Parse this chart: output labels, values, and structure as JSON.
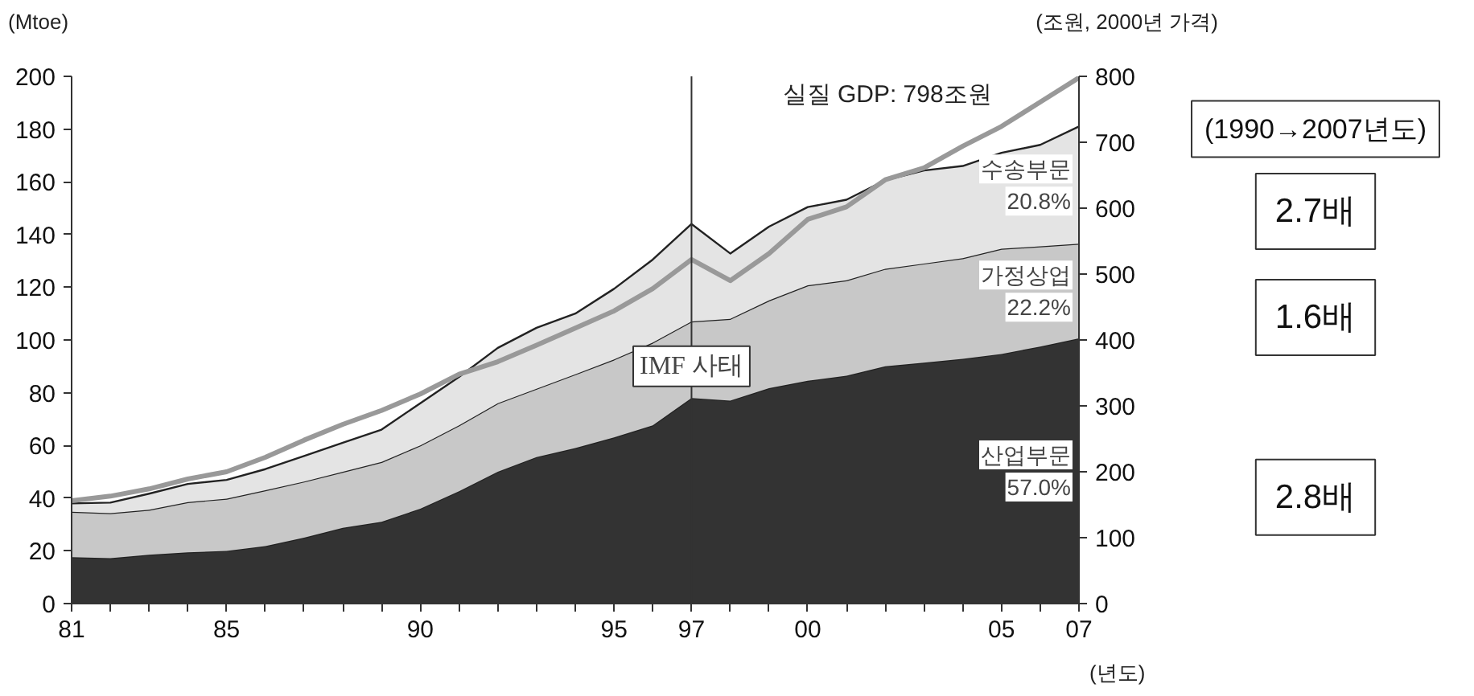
{
  "chart_data": {
    "type": "area",
    "stacked": true,
    "ylabel": "(Mtoe)",
    "y2label": "(조원, 2000년 가격)",
    "xlabel": "(년도)",
    "x": [
      1981,
      1982,
      1983,
      1984,
      1985,
      1986,
      1987,
      1988,
      1989,
      1990,
      1991,
      1992,
      1993,
      1994,
      1995,
      1996,
      1997,
      1998,
      1999,
      2000,
      2001,
      2002,
      2003,
      2004,
      2005,
      2006,
      2007
    ],
    "series": [
      {
        "name": "산업부문",
        "color": "#333333",
        "values": [
          17.6,
          17.2,
          18.5,
          19.4,
          20,
          21.8,
          25,
          28.7,
          31,
          36,
          42.6,
          50,
          55.6,
          59,
          63,
          67.6,
          78,
          77,
          81.7,
          84.5,
          86.4,
          90,
          91.4,
          92.8,
          94.7,
          97.5,
          100.6
        ]
      },
      {
        "name": "가정상업",
        "color": "#c8c8c8",
        "values": [
          17.2,
          17.1,
          17.1,
          19.1,
          19.8,
          21.2,
          21.3,
          21.3,
          22.7,
          24,
          25,
          26,
          25.9,
          28,
          29.6,
          31.4,
          29,
          31,
          33.3,
          36.2,
          36.2,
          37,
          37.6,
          38.2,
          39.9,
          38,
          35.9
        ]
      },
      {
        "name": "수송부문",
        "color": "#e4e4e4",
        "values": [
          3.2,
          4,
          6.1,
          6.9,
          7.1,
          8,
          9.7,
          11,
          12.3,
          16,
          18.4,
          21,
          23.1,
          23,
          26.8,
          31.5,
          37,
          24.8,
          28,
          29.7,
          30.6,
          33.6,
          35.3,
          35,
          36.4,
          38.5,
          44.5
        ]
      },
      {
        "type": "line",
        "axis": "y2",
        "color": "#999999",
        "values": [
          156,
          163,
          174,
          189,
          200,
          222,
          248,
          272,
          293,
          318,
          348,
          367,
          392,
          418,
          444,
          478,
          522,
          490,
          531,
          583,
          602,
          643,
          661,
          694,
          724,
          761,
          798
        ]
      }
    ],
    "xlim": [
      1981,
      2007
    ],
    "xticks": [
      {
        "value": 1981,
        "label": "81"
      },
      {
        "value": 1985,
        "label": "85"
      },
      {
        "value": 1990,
        "label": "90"
      },
      {
        "value": 1995,
        "label": "95"
      },
      {
        "value": 1997,
        "label": "97"
      },
      {
        "value": 2000,
        "label": "00"
      },
      {
        "value": 2005,
        "label": "05"
      },
      {
        "value": 2007,
        "label": "07"
      }
    ],
    "ylim": [
      0,
      200
    ],
    "yticks": [
      0,
      20,
      40,
      60,
      80,
      100,
      120,
      140,
      160,
      180,
      200
    ],
    "y2lim": [
      0,
      800
    ],
    "y2ticks": [
      0,
      100,
      200,
      300,
      400,
      500,
      600,
      700,
      800
    ],
    "ref_lines": [
      {
        "axis": "x",
        "value": 1997,
        "label": "IMF 사태",
        "color": "#333333"
      }
    ],
    "annotations": [
      "실질 GDP:  798조원",
      "20.8%",
      "22.2%",
      "57.0%",
      "(1990→2007년도)",
      "2.7배",
      "1.6배",
      "2.8배"
    ],
    "grid": false
  }
}
